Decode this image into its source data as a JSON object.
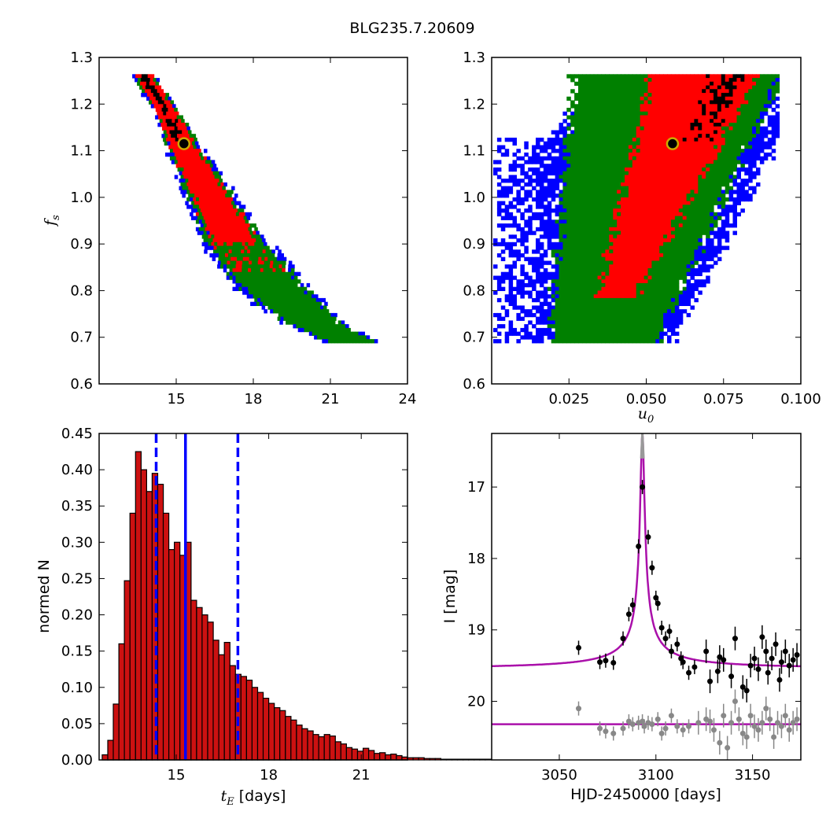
{
  "title": "BLG235.7.20609",
  "panels": {
    "fs_te": {
      "ylabel_main": "f",
      "ylabel_sub": "s",
      "xticks": [
        "15",
        "18",
        "21",
        "24"
      ],
      "yticks": [
        "0.6",
        "0.7",
        "0.8",
        "0.9",
        "1.0",
        "1.1",
        "1.2",
        "1.3"
      ]
    },
    "fs_u0": {
      "xlabel_main": "u",
      "xlabel_sub": "0",
      "xticks": [
        "0.025",
        "0.050",
        "0.075",
        "0.100"
      ],
      "yticks": [
        "0.6",
        "0.7",
        "0.8",
        "0.9",
        "1.0",
        "1.1",
        "1.2",
        "1.3"
      ]
    },
    "hist": {
      "ylabel": "normed N",
      "xlabel_main": "t",
      "xlabel_sub": "E",
      "xlabel_rest": " [days]",
      "xticks": [
        "15",
        "18",
        "21"
      ],
      "yticks": [
        "0.00",
        "0.05",
        "0.10",
        "0.15",
        "0.20",
        "0.25",
        "0.30",
        "0.35",
        "0.40",
        "0.45"
      ]
    },
    "lc": {
      "ylabel": "I [mag]",
      "xlabel": "HJD-2450000 [days]",
      "xticks": [
        "3050",
        "3100",
        "3150"
      ],
      "yticks": [
        "17",
        "18",
        "19",
        "20"
      ]
    }
  },
  "colors": {
    "sigma1": "#ff0000",
    "sigma2": "#008000",
    "sigma3": "#0000ff",
    "best": "#000000",
    "marker_edge": "#ccaa00",
    "hist_bar": "#cc1111",
    "vline": "#0000ff",
    "model": "#aa10aa",
    "obs": "#000000",
    "obs2": "#888888"
  },
  "chart_data": [
    {
      "type": "heatmap",
      "panel": "fs_te",
      "x_range": [
        12,
        24
      ],
      "y_range": [
        0.6,
        1.3
      ],
      "ridge": [
        [
          13.7,
          1.26
        ],
        [
          14.5,
          1.19
        ],
        [
          15.3,
          1.1
        ],
        [
          16.3,
          1.0
        ],
        [
          17.3,
          0.9
        ],
        [
          18.8,
          0.8
        ],
        [
          20.3,
          0.73
        ],
        [
          21.7,
          0.69
        ]
      ],
      "best_fit": {
        "x": 15.3,
        "y": 1.115
      }
    },
    {
      "type": "heatmap",
      "panel": "fs_u0",
      "x_range": [
        0,
        0.1
      ],
      "y_range": [
        0.6,
        1.3
      ],
      "best_fit": {
        "x": 0.0585,
        "y": 1.115
      }
    },
    {
      "type": "bar",
      "panel": "hist",
      "x_range": [
        12.5,
        22.5
      ],
      "y_range": [
        0,
        0.45
      ],
      "bin_start": 12.6,
      "bin_width": 0.18,
      "values": [
        0.007,
        0.027,
        0.077,
        0.16,
        0.247,
        0.34,
        0.425,
        0.4,
        0.37,
        0.395,
        0.38,
        0.34,
        0.29,
        0.3,
        0.282,
        0.3,
        0.22,
        0.21,
        0.2,
        0.19,
        0.165,
        0.145,
        0.162,
        0.13,
        0.118,
        0.115,
        0.11,
        0.1,
        0.093,
        0.085,
        0.078,
        0.072,
        0.068,
        0.06,
        0.055,
        0.048,
        0.043,
        0.04,
        0.035,
        0.032,
        0.035,
        0.033,
        0.025,
        0.022,
        0.017,
        0.015,
        0.012,
        0.016,
        0.013,
        0.009,
        0.01,
        0.007,
        0.008,
        0.006,
        0.004,
        0.003,
        0.003,
        0.003,
        0.002,
        0.002,
        0.002,
        0.001,
        0.001,
        0.001,
        0.001,
        0.001,
        0.001,
        0.001,
        0.001,
        0.001
      ],
      "median": 15.3,
      "conf_low": 14.35,
      "conf_high": 17.0
    },
    {
      "type": "scatter",
      "panel": "lc",
      "x_range": [
        3015,
        3175
      ],
      "y_range": [
        20.82,
        16.25
      ],
      "y_inverted": true,
      "model_peak_t": 3093,
      "model_peak_mag": 16.25,
      "baseline_mag": 19.54,
      "baseline2_mag": 20.32,
      "series": [
        {
          "color": "black",
          "points": [
            [
              3060,
              19.25
            ],
            [
              3071,
              19.45
            ],
            [
              3074,
              19.43
            ],
            [
              3078,
              19.46
            ],
            [
              3083,
              19.12
            ],
            [
              3086,
              18.78
            ],
            [
              3088,
              18.65
            ],
            [
              3091,
              17.83
            ],
            [
              3093,
              17.0
            ],
            [
              3096,
              17.7
            ],
            [
              3098,
              18.13
            ],
            [
              3100,
              18.55
            ],
            [
              3101,
              18.63
            ],
            [
              3103,
              18.97
            ],
            [
              3105,
              19.12
            ],
            [
              3107,
              19.02
            ],
            [
              3108,
              19.3
            ],
            [
              3111,
              19.2
            ],
            [
              3113,
              19.4
            ],
            [
              3114,
              19.45
            ],
            [
              3117,
              19.6
            ],
            [
              3120,
              19.52
            ],
            [
              3126,
              19.3
            ],
            [
              3128,
              19.72
            ],
            [
              3132,
              19.58
            ],
            [
              3133,
              19.38
            ],
            [
              3135,
              19.42
            ],
            [
              3139,
              19.65
            ],
            [
              3141,
              19.12
            ],
            [
              3145,
              19.8
            ],
            [
              3147,
              19.85
            ],
            [
              3149,
              19.5
            ],
            [
              3151,
              19.4
            ],
            [
              3153,
              19.55
            ],
            [
              3155,
              19.1
            ],
            [
              3157,
              19.3
            ],
            [
              3158,
              19.6
            ],
            [
              3160,
              19.4
            ],
            [
              3162,
              19.2
            ],
            [
              3164,
              19.7
            ],
            [
              3165,
              19.45
            ],
            [
              3167,
              19.3
            ],
            [
              3169,
              19.5
            ],
            [
              3171,
              19.42
            ],
            [
              3173,
              19.35
            ]
          ]
        },
        {
          "color": "gray",
          "points": [
            [
              3060,
              20.1
            ],
            [
              3071,
              20.38
            ],
            [
              3074,
              20.42
            ],
            [
              3078,
              20.45
            ],
            [
              3083,
              20.38
            ],
            [
              3086,
              20.28
            ],
            [
              3088,
              20.32
            ],
            [
              3091,
              20.3
            ],
            [
              3093,
              20.28
            ],
            [
              3094,
              20.35
            ],
            [
              3096,
              20.3
            ],
            [
              3098,
              20.32
            ],
            [
              3101,
              20.25
            ],
            [
              3103,
              20.45
            ],
            [
              3105,
              20.38
            ],
            [
              3108,
              20.2
            ],
            [
              3111,
              20.35
            ],
            [
              3114,
              20.4
            ],
            [
              3117,
              20.35
            ],
            [
              3122,
              20.3
            ],
            [
              3126,
              20.25
            ],
            [
              3128,
              20.28
            ],
            [
              3130,
              20.4
            ],
            [
              3133,
              20.58
            ],
            [
              3135,
              20.2
            ],
            [
              3137,
              20.65
            ],
            [
              3139,
              20.3
            ],
            [
              3141,
              20.0
            ],
            [
              3143,
              20.25
            ],
            [
              3145,
              20.45
            ],
            [
              3147,
              20.5
            ],
            [
              3149,
              20.2
            ],
            [
              3151,
              20.35
            ],
            [
              3153,
              20.4
            ],
            [
              3155,
              20.3
            ],
            [
              3157,
              20.1
            ],
            [
              3159,
              20.25
            ],
            [
              3161,
              20.5
            ],
            [
              3163,
              20.3
            ],
            [
              3165,
              20.35
            ],
            [
              3167,
              20.2
            ],
            [
              3169,
              20.4
            ],
            [
              3171,
              20.3
            ],
            [
              3173,
              20.25
            ]
          ]
        }
      ]
    }
  ]
}
